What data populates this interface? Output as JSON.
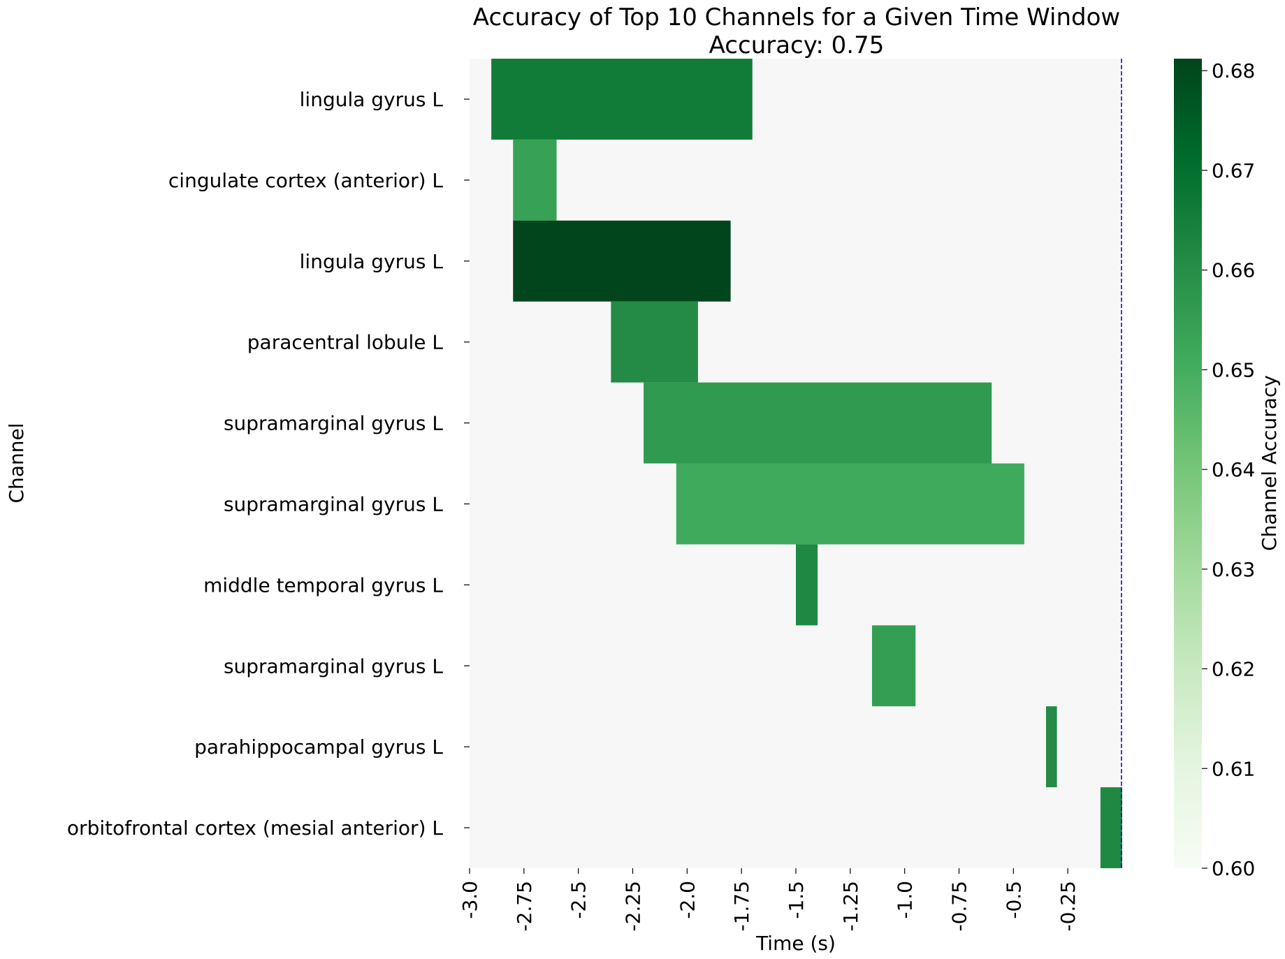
{
  "chart_data": {
    "type": "heatmap",
    "title": "Accuracy of Top 10 Channels for a Given Time Window",
    "subtitle": "Accuracy: 0.75",
    "xlabel": "Time (s)",
    "ylabel": "Channel",
    "xlim": [
      -3.0,
      0.0
    ],
    "x_ticks": [
      -3.0,
      -2.75,
      -2.5,
      -2.25,
      -2.0,
      -1.75,
      -1.5,
      -1.25,
      -1.0,
      -0.75,
      -0.5,
      -0.25
    ],
    "x_tick_labels": [
      "-3.0",
      "-2.75",
      "-2.5",
      "-2.25",
      "-2.0",
      "-1.75",
      "-1.5",
      "-1.25",
      "-1.0",
      "-0.75",
      "-0.5",
      "-0.25"
    ],
    "channels": [
      "lingula gyrus L",
      "cingulate cortex (anterior) L",
      "lingula gyrus L",
      "paracentral lobule L",
      "supramarginal gyrus L",
      "supramarginal gyrus L",
      "middle temporal gyrus L",
      "supramarginal gyrus L",
      "parahippocampal gyrus L",
      "orbitofrontal cortex (mesial anterior) L"
    ],
    "windows": [
      {
        "row": 0,
        "start": -2.9,
        "end": -1.7,
        "accuracy": 0.666
      },
      {
        "row": 1,
        "start": -2.8,
        "end": -2.6,
        "accuracy": 0.654
      },
      {
        "row": 2,
        "start": -2.8,
        "end": -1.8,
        "accuracy": 0.681
      },
      {
        "row": 3,
        "start": -2.35,
        "end": -1.95,
        "accuracy": 0.661
      },
      {
        "row": 4,
        "start": -2.2,
        "end": -0.6,
        "accuracy": 0.656
      },
      {
        "row": 5,
        "start": -2.05,
        "end": -0.45,
        "accuracy": 0.651
      },
      {
        "row": 6,
        "start": -1.5,
        "end": -1.4,
        "accuracy": 0.662
      },
      {
        "row": 7,
        "start": -1.15,
        "end": -0.95,
        "accuracy": 0.655
      },
      {
        "row": 8,
        "start": -0.35,
        "end": -0.3,
        "accuracy": 0.661
      },
      {
        "row": 9,
        "start": -0.1,
        "end": 0.0,
        "accuracy": 0.662
      }
    ],
    "background_color": "#f7f7f7",
    "vline": {
      "x": 0.0,
      "color": "#0000cc",
      "style": "dashed"
    },
    "colorbar": {
      "label": "Channel Accuracy",
      "range": [
        0.6,
        0.6812
      ],
      "ticks": [
        0.6,
        0.61,
        0.62,
        0.63,
        0.64,
        0.65,
        0.66,
        0.67,
        0.68
      ],
      "tick_labels": [
        "0.60",
        "0.61",
        "0.62",
        "0.63",
        "0.64",
        "0.65",
        "0.66",
        "0.67",
        "0.68"
      ],
      "colormap": "Greens",
      "colormap_stops": [
        "#f7fcf5",
        "#e5f5e0",
        "#c7e9c0",
        "#a1d99b",
        "#74c476",
        "#41ab5d",
        "#238b45",
        "#006d2c",
        "#00441b"
      ]
    }
  }
}
